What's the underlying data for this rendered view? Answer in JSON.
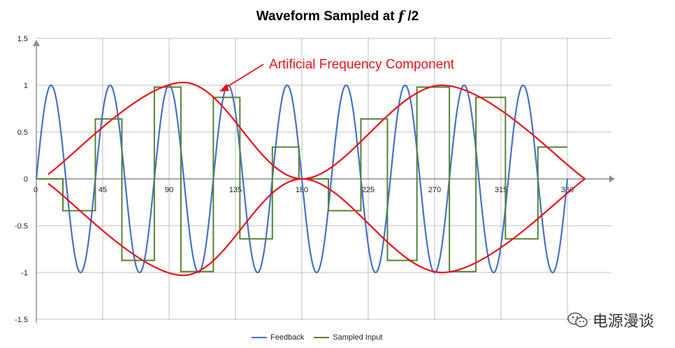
{
  "chart_data": {
    "type": "line",
    "title_prefix": "Waveform Sampled at ",
    "title_var": "f",
    "title_suffix": " /2",
    "xlim": [
      0,
      370
    ],
    "ylim": [
      -1.5,
      1.5
    ],
    "x_ticks": [
      0,
      45,
      90,
      135,
      180,
      225,
      270,
      315,
      360
    ],
    "y_ticks": [
      1.5,
      1,
      0.5,
      0,
      -0.5,
      -1,
      -1.5
    ],
    "y_tick_labels": [
      "1.5",
      "1",
      "0.5",
      "0",
      "-0.5",
      "-1",
      "-1.5"
    ],
    "grid": true,
    "legend_position": "bottom",
    "series": [
      {
        "name": "Feedback",
        "color": "#4472c4",
        "function": "sin",
        "cycles_over_360": 9,
        "amplitude": 1
      },
      {
        "name": "Sampled Input",
        "color": "#548235",
        "step_x": [
          0,
          18,
          40,
          58,
          80,
          98,
          120,
          138,
          160,
          178,
          198,
          220,
          238,
          258,
          280,
          298,
          318,
          340,
          360
        ],
        "step_y": [
          0,
          -0.34,
          0.64,
          -0.87,
          0.98,
          -0.99,
          0.87,
          -0.64,
          0.34,
          0,
          -0.34,
          0.64,
          -0.87,
          0.98,
          -0.99,
          0.87,
          -0.64,
          0.34
        ]
      },
      {
        "name": "Envelope",
        "color": "#e8121b",
        "envelope_x": [
          8,
          100,
          180,
          275,
          372
        ],
        "envelope_y_upper": [
          0.05,
          1.03,
          0,
          1.0,
          0
        ],
        "envelope_y_lower": [
          -0.05,
          -1.03,
          0,
          -1.0,
          0
        ]
      }
    ],
    "annotation": {
      "text": "Artificial Frequency Component",
      "color": "#e8121b"
    }
  },
  "legend": {
    "items": [
      {
        "label": "Feedback",
        "color": "#4472c4"
      },
      {
        "label": "Sampled Input",
        "color": "#548235"
      }
    ]
  },
  "watermark": {
    "text": "电源漫谈",
    "icon": "wechat-icon"
  }
}
